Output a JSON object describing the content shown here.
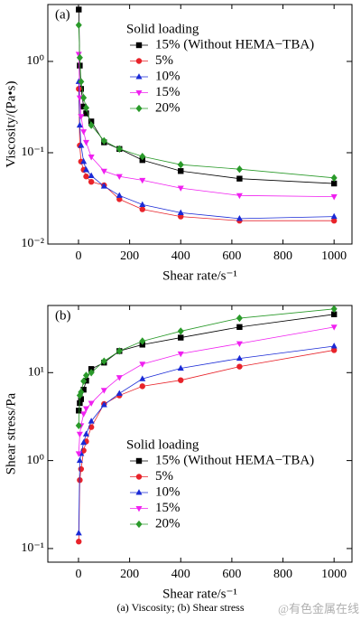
{
  "chart_data": [
    {
      "type": "line",
      "label": "(a)",
      "x_label": "Shear rate/s⁻¹",
      "y_label": "Viscosity/(Pa•s)",
      "yscale": "log",
      "legend_title": "Solid loading",
      "legend_loc": "upper right",
      "xlim": [
        -120,
        1070
      ],
      "xticks": [
        0,
        200,
        400,
        600,
        800,
        1000
      ],
      "ylim": [
        0.01,
        4.2
      ],
      "yticks": [
        {
          "value": 0.01,
          "label": "10⁻²"
        },
        {
          "value": 0.1,
          "label": "10⁻¹"
        },
        {
          "value": 1,
          "label": "10⁰"
        }
      ],
      "x": [
        1,
        5,
        10,
        20,
        30,
        50,
        100,
        160,
        250,
        400,
        630,
        1000
      ],
      "series": [
        {
          "name": "15% (Without HEMA−TBA)",
          "color": "#000000",
          "marker": "square",
          "values": [
            3.7,
            0.9,
            0.5,
            0.32,
            0.27,
            0.22,
            0.13,
            0.11,
            0.083,
            0.063,
            0.052,
            0.046
          ]
        },
        {
          "name": "5%",
          "color": "#e8232a",
          "marker": "circle",
          "values": [
            0.5,
            0.12,
            0.08,
            0.065,
            0.055,
            0.048,
            0.044,
            0.031,
            0.024,
            0.02,
            0.018,
            0.018
          ]
        },
        {
          "name": "10%",
          "color": "#1a2ad6",
          "marker": "triangle-up",
          "values": [
            0.6,
            0.2,
            0.12,
            0.08,
            0.065,
            0.056,
            0.043,
            0.034,
            0.027,
            0.022,
            0.019,
            0.02
          ]
        },
        {
          "name": "15%",
          "color": "#f020f0",
          "marker": "triangle-down",
          "values": [
            1.2,
            0.4,
            0.25,
            0.17,
            0.13,
            0.09,
            0.063,
            0.055,
            0.05,
            0.041,
            0.034,
            0.033
          ]
        },
        {
          "name": "20%",
          "color": "#2a9a2a",
          "marker": "diamond",
          "values": [
            2.5,
            1.1,
            0.6,
            0.4,
            0.31,
            0.2,
            0.135,
            0.11,
            0.091,
            0.074,
            0.066,
            0.053
          ]
        }
      ]
    },
    {
      "type": "line",
      "label": "(b)",
      "x_label": "Shear rate/s⁻¹",
      "y_label": "Shear stress/Pa",
      "yscale": "log",
      "legend_title": "Solid loading",
      "legend_loc": "lower right",
      "xlim": [
        -120,
        1070
      ],
      "xticks": [
        0,
        200,
        400,
        600,
        800,
        1000
      ],
      "ylim": [
        0.07,
        58
      ],
      "yticks": [
        {
          "value": 0.1,
          "label": "10⁻¹"
        },
        {
          "value": 1,
          "label": "10⁰"
        },
        {
          "value": 10,
          "label": "10¹"
        }
      ],
      "x": [
        1,
        5,
        10,
        20,
        30,
        50,
        100,
        160,
        250,
        400,
        630,
        1000
      ],
      "series": [
        {
          "name": "15% (Without HEMA−TBA)",
          "color": "#000000",
          "marker": "square",
          "values": [
            3.7,
            4.5,
            5,
            6.4,
            8.1,
            11,
            13,
            17.6,
            20.8,
            25,
            33,
            46
          ]
        },
        {
          "name": "5%",
          "color": "#e8232a",
          "marker": "circle",
          "values": [
            0.12,
            0.6,
            0.8,
            1.3,
            1.65,
            2.4,
            4.4,
            5.5,
            7,
            8.2,
            11.7,
            18
          ]
        },
        {
          "name": "10%",
          "color": "#1a2ad6",
          "marker": "triangle-up",
          "values": [
            0.15,
            1,
            1.2,
            1.6,
            2,
            2.8,
            4.3,
            5.8,
            8.5,
            11.2,
            14.5,
            20
          ]
        },
        {
          "name": "15%",
          "color": "#f020f0",
          "marker": "triangle-down",
          "values": [
            1.2,
            2,
            2.5,
            3.4,
            3.9,
            4.5,
            6.3,
            8.8,
            12.5,
            16.4,
            21.4,
            33
          ]
        },
        {
          "name": "20%",
          "color": "#2a9a2a",
          "marker": "diamond",
          "values": [
            2.5,
            5.5,
            6,
            8,
            9.3,
            10,
            13.5,
            17.6,
            22.8,
            29.6,
            41.6,
            53
          ]
        }
      ]
    }
  ],
  "caption": "(a) Viscosity; (b) Shear stress",
  "watermark": "@有色金属在线"
}
